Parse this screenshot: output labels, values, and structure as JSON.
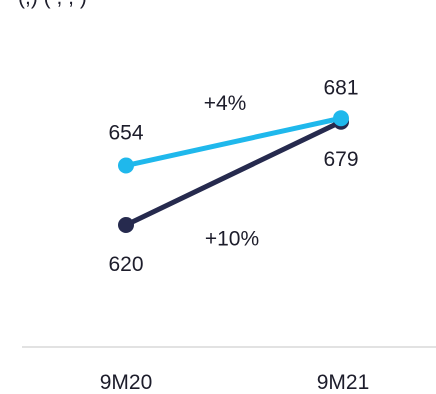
{
  "header": {
    "partial_text": "(,) ( , , )"
  },
  "chart_data": {
    "type": "line",
    "categories": [
      "9M20",
      "9M21"
    ],
    "series": [
      {
        "values": [
          654,
          681
        ],
        "color": "#1fb8ec",
        "point_labels": [
          "654",
          "681"
        ],
        "change_label": "+4%"
      },
      {
        "values": [
          620,
          679
        ],
        "color": "#262a4e",
        "point_labels": [
          "620",
          "679"
        ],
        "change_label": "+10%"
      }
    ],
    "ylim": [
      560,
      720
    ],
    "title": "",
    "xlabel": "",
    "ylabel": "",
    "grid": false,
    "legend": "none",
    "axis_color": "#d9d9d9"
  }
}
